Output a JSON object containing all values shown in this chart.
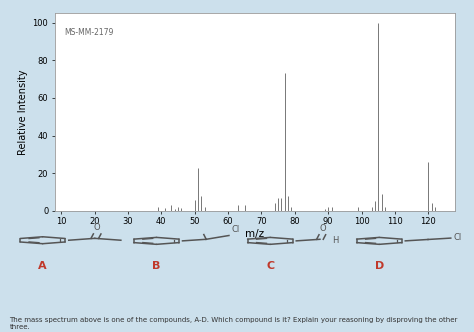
{
  "title": "MS-MM-2179",
  "xlabel": "m/z",
  "ylabel": "Relative Intensity",
  "xlim": [
    8,
    128
  ],
  "ylim": [
    0,
    105
  ],
  "xticks": [
    10,
    20,
    30,
    40,
    50,
    60,
    70,
    80,
    90,
    100,
    110,
    120
  ],
  "yticks": [
    0,
    20,
    40,
    60,
    80,
    100
  ],
  "background_color": "#ffffff",
  "outer_background": "#cce0ec",
  "peaks": [
    [
      39,
      2
    ],
    [
      41,
      1.5
    ],
    [
      43,
      3
    ],
    [
      44,
      1
    ],
    [
      45,
      2
    ],
    [
      46,
      1.5
    ],
    [
      50,
      6
    ],
    [
      51,
      23
    ],
    [
      52,
      8
    ],
    [
      53,
      2
    ],
    [
      63,
      3
    ],
    [
      65,
      3
    ],
    [
      74,
      4
    ],
    [
      75,
      7
    ],
    [
      76,
      7
    ],
    [
      77,
      73
    ],
    [
      78,
      8
    ],
    [
      79,
      2
    ],
    [
      89,
      1
    ],
    [
      90,
      2
    ],
    [
      91,
      2
    ],
    [
      99,
      2
    ],
    [
      103,
      2
    ],
    [
      104,
      5
    ],
    [
      105,
      100
    ],
    [
      106,
      9
    ],
    [
      107,
      2
    ],
    [
      120,
      26
    ],
    [
      121,
      4
    ],
    [
      122,
      2
    ]
  ],
  "bar_color": "#777777",
  "annotation_text": "MS-MM-2179",
  "bottom_text": "The mass spectrum above is one of the compounds, A-D. Which compound is it? Explain your reasoning by disproving the other three.",
  "compound_labels": [
    "A",
    "B",
    "C",
    "D"
  ],
  "label_color": "#c0392b",
  "label_fontsize": 8
}
